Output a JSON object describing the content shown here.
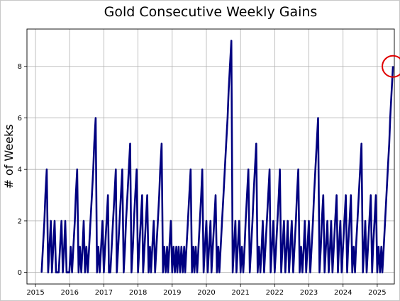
{
  "chart_data": {
    "type": "line",
    "title": "Gold Consecutive Weekly Gains",
    "xlabel": "",
    "ylabel": "# of Weeks",
    "xlim": [
      2014.75,
      2025.5
    ],
    "ylim": [
      -0.45,
      9.45
    ],
    "x_ticks": [
      "2015",
      "2016",
      "2017",
      "2018",
      "2019",
      "2020",
      "2021",
      "2022",
      "2023",
      "2024",
      "2025"
    ],
    "y_ticks": [
      "0",
      "2",
      "4",
      "6",
      "8"
    ],
    "grid": true,
    "series": [
      {
        "color": "#000080",
        "points": [
          [
            2015.18,
            0
          ],
          [
            2015.22,
            1
          ],
          [
            2015.26,
            2
          ],
          [
            2015.29,
            3
          ],
          [
            2015.33,
            4
          ],
          [
            2015.37,
            0
          ],
          [
            2015.41,
            1
          ],
          [
            2015.45,
            2
          ],
          [
            2015.48,
            0
          ],
          [
            2015.52,
            1
          ],
          [
            2015.56,
            2
          ],
          [
            2015.6,
            0
          ],
          [
            2015.68,
            0
          ],
          [
            2015.72,
            1
          ],
          [
            2015.76,
            2
          ],
          [
            2015.8,
            0
          ],
          [
            2015.84,
            1
          ],
          [
            2015.87,
            2
          ],
          [
            2015.91,
            0
          ],
          [
            2015.99,
            0
          ],
          [
            2016.03,
            1
          ],
          [
            2016.07,
            0
          ],
          [
            2016.11,
            1
          ],
          [
            2016.15,
            2
          ],
          [
            2016.18,
            3
          ],
          [
            2016.22,
            4
          ],
          [
            2016.26,
            0
          ],
          [
            2016.3,
            1
          ],
          [
            2016.34,
            0
          ],
          [
            2016.38,
            1
          ],
          [
            2016.41,
            2
          ],
          [
            2016.45,
            0
          ],
          [
            2016.49,
            1
          ],
          [
            2016.53,
            0
          ],
          [
            2016.57,
            1
          ],
          [
            2016.61,
            2
          ],
          [
            2016.65,
            3
          ],
          [
            2016.69,
            4
          ],
          [
            2016.72,
            5
          ],
          [
            2016.76,
            6
          ],
          [
            2016.8,
            0
          ],
          [
            2016.84,
            1
          ],
          [
            2016.88,
            0
          ],
          [
            2016.92,
            1
          ],
          [
            2016.96,
            2
          ],
          [
            2017.0,
            0
          ],
          [
            2017.04,
            1
          ],
          [
            2017.08,
            2
          ],
          [
            2017.12,
            3
          ],
          [
            2017.15,
            0
          ],
          [
            2017.19,
            0
          ],
          [
            2017.23,
            1
          ],
          [
            2017.27,
            2
          ],
          [
            2017.31,
            3
          ],
          [
            2017.35,
            4
          ],
          [
            2017.38,
            0
          ],
          [
            2017.42,
            1
          ],
          [
            2017.46,
            2
          ],
          [
            2017.5,
            3
          ],
          [
            2017.54,
            4
          ],
          [
            2017.58,
            0
          ],
          [
            2017.62,
            1
          ],
          [
            2017.65,
            2
          ],
          [
            2017.69,
            3
          ],
          [
            2017.73,
            4
          ],
          [
            2017.77,
            5
          ],
          [
            2017.81,
            0
          ],
          [
            2017.85,
            1
          ],
          [
            2017.88,
            2
          ],
          [
            2017.92,
            3
          ],
          [
            2017.96,
            4
          ],
          [
            2018.0,
            0
          ],
          [
            2018.04,
            1
          ],
          [
            2018.08,
            2
          ],
          [
            2018.12,
            3
          ],
          [
            2018.15,
            0
          ],
          [
            2018.19,
            1
          ],
          [
            2018.23,
            2
          ],
          [
            2018.27,
            3
          ],
          [
            2018.31,
            0
          ],
          [
            2018.35,
            1
          ],
          [
            2018.38,
            0
          ],
          [
            2018.42,
            1
          ],
          [
            2018.46,
            2
          ],
          [
            2018.5,
            0
          ],
          [
            2018.54,
            1
          ],
          [
            2018.58,
            2
          ],
          [
            2018.62,
            3
          ],
          [
            2018.65,
            4
          ],
          [
            2018.69,
            5
          ],
          [
            2018.73,
            0
          ],
          [
            2018.77,
            1
          ],
          [
            2018.81,
            0
          ],
          [
            2018.85,
            1
          ],
          [
            2018.88,
            0
          ],
          [
            2018.92,
            1
          ],
          [
            2018.96,
            2
          ],
          [
            2019.0,
            0
          ],
          [
            2019.04,
            1
          ],
          [
            2019.08,
            0
          ],
          [
            2019.12,
            1
          ],
          [
            2019.15,
            0
          ],
          [
            2019.19,
            1
          ],
          [
            2019.23,
            0
          ],
          [
            2019.27,
            1
          ],
          [
            2019.31,
            0
          ],
          [
            2019.35,
            1
          ],
          [
            2019.38,
            0
          ],
          [
            2019.42,
            1
          ],
          [
            2019.46,
            2
          ],
          [
            2019.5,
            3
          ],
          [
            2019.54,
            4
          ],
          [
            2019.58,
            0
          ],
          [
            2019.62,
            1
          ],
          [
            2019.65,
            0
          ],
          [
            2019.69,
            1
          ],
          [
            2019.73,
            0
          ],
          [
            2019.77,
            1
          ],
          [
            2019.81,
            2
          ],
          [
            2019.85,
            3
          ],
          [
            2019.88,
            4
          ],
          [
            2019.92,
            0
          ],
          [
            2019.96,
            1
          ],
          [
            2020.0,
            2
          ],
          [
            2020.04,
            0
          ],
          [
            2020.08,
            1
          ],
          [
            2020.12,
            2
          ],
          [
            2020.15,
            0
          ],
          [
            2020.19,
            1
          ],
          [
            2020.23,
            2
          ],
          [
            2020.27,
            3
          ],
          [
            2020.31,
            0
          ],
          [
            2020.35,
            1
          ],
          [
            2020.38,
            0
          ],
          [
            2020.42,
            1
          ],
          [
            2020.46,
            2
          ],
          [
            2020.5,
            3
          ],
          [
            2020.54,
            4
          ],
          [
            2020.58,
            5
          ],
          [
            2020.62,
            6
          ],
          [
            2020.65,
            7
          ],
          [
            2020.69,
            8
          ],
          [
            2020.73,
            9
          ],
          [
            2020.77,
            0
          ],
          [
            2020.81,
            1
          ],
          [
            2020.85,
            2
          ],
          [
            2020.88,
            0
          ],
          [
            2020.92,
            1
          ],
          [
            2020.96,
            2
          ],
          [
            2021.0,
            0
          ],
          [
            2021.04,
            1
          ],
          [
            2021.08,
            0
          ],
          [
            2021.12,
            1
          ],
          [
            2021.15,
            2
          ],
          [
            2021.19,
            3
          ],
          [
            2021.23,
            4
          ],
          [
            2021.27,
            0
          ],
          [
            2021.31,
            1
          ],
          [
            2021.35,
            2
          ],
          [
            2021.38,
            3
          ],
          [
            2021.42,
            4
          ],
          [
            2021.46,
            5
          ],
          [
            2021.5,
            0
          ],
          [
            2021.54,
            1
          ],
          [
            2021.58,
            0
          ],
          [
            2021.62,
            1
          ],
          [
            2021.65,
            2
          ],
          [
            2021.69,
            0
          ],
          [
            2021.73,
            1
          ],
          [
            2021.77,
            2
          ],
          [
            2021.81,
            3
          ],
          [
            2021.85,
            4
          ],
          [
            2021.88,
            0
          ],
          [
            2021.92,
            1
          ],
          [
            2021.96,
            2
          ],
          [
            2022.0,
            0
          ],
          [
            2022.04,
            1
          ],
          [
            2022.08,
            2
          ],
          [
            2022.12,
            3
          ],
          [
            2022.15,
            4
          ],
          [
            2022.19,
            0
          ],
          [
            2022.23,
            1
          ],
          [
            2022.27,
            2
          ],
          [
            2022.31,
            0
          ],
          [
            2022.35,
            1
          ],
          [
            2022.38,
            2
          ],
          [
            2022.42,
            0
          ],
          [
            2022.46,
            1
          ],
          [
            2022.5,
            2
          ],
          [
            2022.54,
            0
          ],
          [
            2022.58,
            1
          ],
          [
            2022.62,
            2
          ],
          [
            2022.65,
            3
          ],
          [
            2022.69,
            4
          ],
          [
            2022.73,
            0
          ],
          [
            2022.77,
            1
          ],
          [
            2022.81,
            0
          ],
          [
            2022.85,
            1
          ],
          [
            2022.88,
            2
          ],
          [
            2022.92,
            0
          ],
          [
            2022.96,
            1
          ],
          [
            2023.0,
            2
          ],
          [
            2023.04,
            0
          ],
          [
            2023.08,
            1
          ],
          [
            2023.12,
            2
          ],
          [
            2023.15,
            3
          ],
          [
            2023.19,
            4
          ],
          [
            2023.23,
            5
          ],
          [
            2023.27,
            6
          ],
          [
            2023.31,
            0
          ],
          [
            2023.35,
            1
          ],
          [
            2023.38,
            2
          ],
          [
            2023.42,
            3
          ],
          [
            2023.46,
            0
          ],
          [
            2023.5,
            1
          ],
          [
            2023.54,
            2
          ],
          [
            2023.58,
            0
          ],
          [
            2023.62,
            1
          ],
          [
            2023.65,
            2
          ],
          [
            2023.69,
            0
          ],
          [
            2023.73,
            1
          ],
          [
            2023.77,
            2
          ],
          [
            2023.81,
            3
          ],
          [
            2023.85,
            0
          ],
          [
            2023.88,
            1
          ],
          [
            2023.92,
            2
          ],
          [
            2023.96,
            0
          ],
          [
            2024.0,
            1
          ],
          [
            2024.04,
            2
          ],
          [
            2024.08,
            3
          ],
          [
            2024.12,
            0
          ],
          [
            2024.15,
            1
          ],
          [
            2024.19,
            2
          ],
          [
            2024.23,
            3
          ],
          [
            2024.27,
            0
          ],
          [
            2024.31,
            1
          ],
          [
            2024.35,
            0
          ],
          [
            2024.38,
            1
          ],
          [
            2024.42,
            2
          ],
          [
            2024.46,
            3
          ],
          [
            2024.5,
            4
          ],
          [
            2024.54,
            5
          ],
          [
            2024.58,
            0
          ],
          [
            2024.62,
            1
          ],
          [
            2024.65,
            2
          ],
          [
            2024.69,
            0
          ],
          [
            2024.73,
            1
          ],
          [
            2024.77,
            2
          ],
          [
            2024.81,
            3
          ],
          [
            2024.85,
            0
          ],
          [
            2024.88,
            1
          ],
          [
            2024.92,
            2
          ],
          [
            2024.96,
            3
          ],
          [
            2025.0,
            0
          ],
          [
            2025.04,
            1
          ],
          [
            2025.08,
            0
          ],
          [
            2025.12,
            1
          ],
          [
            2025.15,
            0
          ],
          [
            2025.19,
            1
          ],
          [
            2025.23,
            2
          ],
          [
            2025.27,
            3
          ],
          [
            2025.31,
            4
          ],
          [
            2025.35,
            5
          ],
          [
            2025.38,
            6
          ],
          [
            2025.42,
            7
          ],
          [
            2025.46,
            8
          ]
        ]
      }
    ],
    "annotations": [
      {
        "type": "circle",
        "x": 2025.46,
        "y": 8,
        "color": "#e00000"
      }
    ]
  }
}
